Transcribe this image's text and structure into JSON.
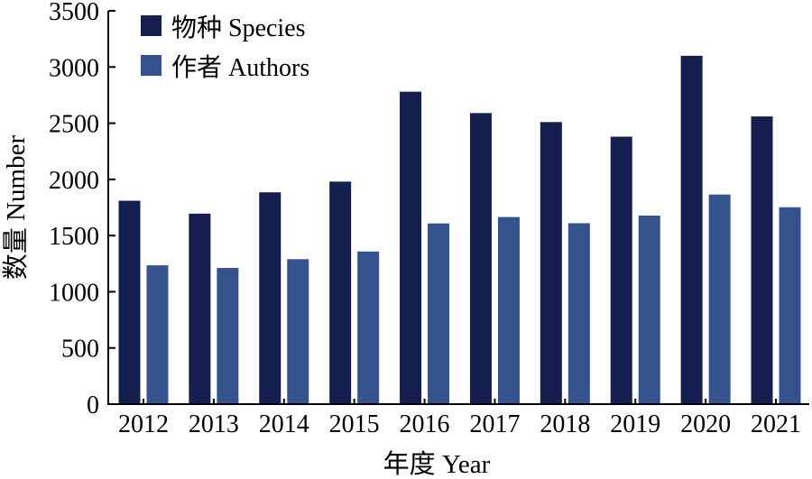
{
  "chart_data": {
    "type": "bar",
    "title": "",
    "xlabel": "年度 Year",
    "ylabel": "数量 Number",
    "categories": [
      "2012",
      "2013",
      "2014",
      "2015",
      "2016",
      "2017",
      "2018",
      "2019",
      "2020",
      "2021"
    ],
    "series": [
      {
        "name": "物种 Species",
        "color": "#141f50",
        "values": [
          1810,
          1695,
          1885,
          1980,
          2780,
          2590,
          2510,
          2380,
          3100,
          2560
        ]
      },
      {
        "name": "作者 Authors",
        "color": "#34538c",
        "values": [
          1235,
          1212,
          1290,
          1358,
          1608,
          1665,
          1610,
          1678,
          1865,
          1752
        ]
      }
    ],
    "ylim": [
      0,
      3500
    ],
    "yticks": [
      "0",
      "500",
      "1000",
      "1500",
      "2000",
      "2500",
      "3000",
      "3500"
    ],
    "grid": false,
    "legend_position": "top-left"
  }
}
